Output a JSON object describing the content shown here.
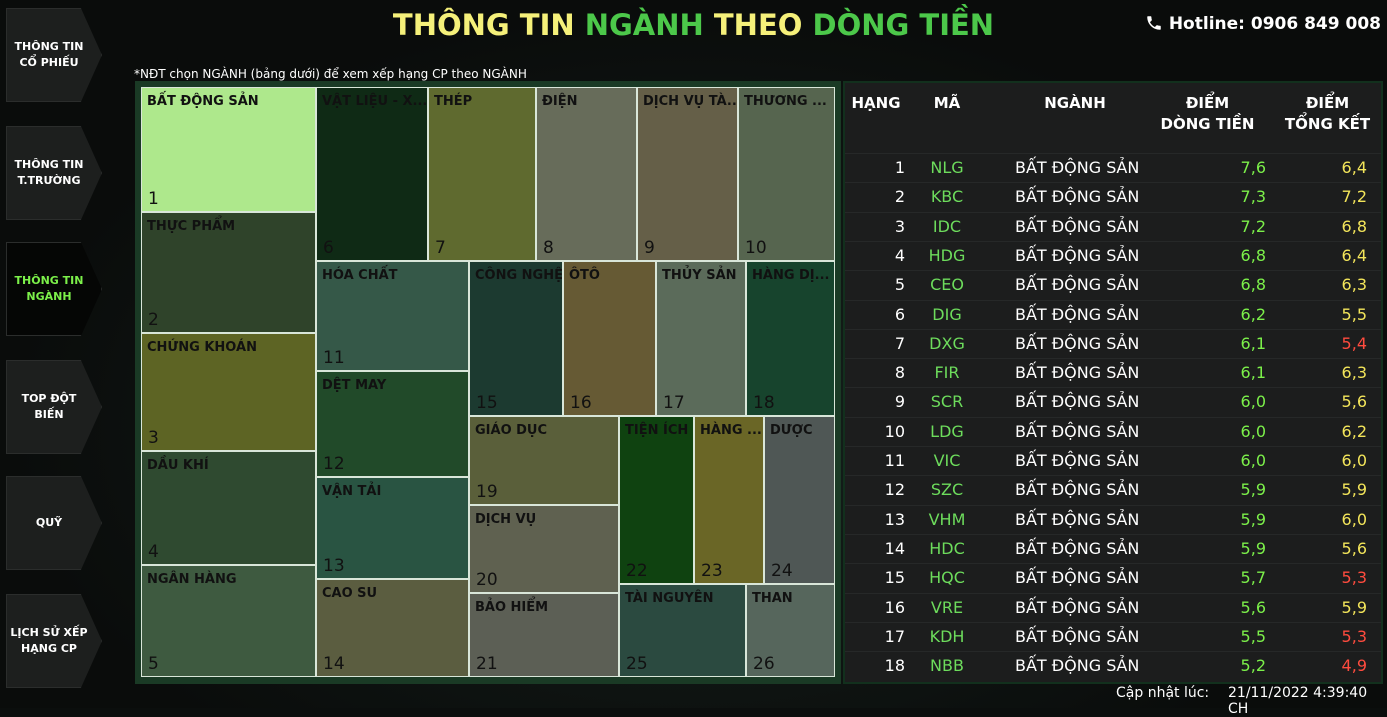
{
  "nav": [
    "THÔNG TIN\nCỔ PHIẾU",
    "THÔNG TIN\nT.TRƯỜNG",
    "THÔNG TIN\nNGÀNH",
    "TOP ĐỘT\nBIẾN",
    "QUỸ",
    "LỊCH SỬ XẾP\nHẠNG CP"
  ],
  "header": {
    "title_parts": [
      {
        "text": "THÔNG TIN ",
        "color": "#f5f07a"
      },
      {
        "text": "NGÀNH ",
        "color": "#4cc84a"
      },
      {
        "text": "THEO ",
        "color": "#f5f07a"
      },
      {
        "text": "DÒNG TIỀN",
        "color": "#4cc84a"
      }
    ],
    "hotline": "Hotline: 0906 849 008"
  },
  "note": "*NĐT chọn NGÀNH (bảng dưới) để xem xếp hạng CP theo NGÀNH",
  "treemap": [
    {
      "label": "BẤT ĐỘNG SẢN",
      "rank": 1,
      "color": "#aee88c"
    },
    {
      "label": "THỰC PHẨM",
      "rank": 2,
      "color": "#2f432a"
    },
    {
      "label": "CHỨNG KHOÁN",
      "rank": 3,
      "color": "#5d6424"
    },
    {
      "label": "DẦU KHÍ",
      "rank": 4,
      "color": "#2f4a30"
    },
    {
      "label": "NGÂN HÀNG",
      "rank": 5,
      "color": "#3e5a40"
    },
    {
      "label": "VẬT LIỆU - X...",
      "rank": 6,
      "color": "#0f2a15"
    },
    {
      "label": "THÉP",
      "rank": 7,
      "color": "#5f6a2f"
    },
    {
      "label": "ĐIỆN",
      "rank": 8,
      "color": "#676c5a"
    },
    {
      "label": "DỊCH VỤ TÀ...",
      "rank": 9,
      "color": "#655f48"
    },
    {
      "label": "THƯƠNG ...",
      "rank": 10,
      "color": "#56654f"
    },
    {
      "label": "HÓA CHẤT",
      "rank": 11,
      "color": "#355848"
    },
    {
      "label": "DỆT MAY",
      "rank": 12,
      "color": "#214a29"
    },
    {
      "label": "VẬN TẢI",
      "rank": 13,
      "color": "#295442"
    },
    {
      "label": "CAO SU",
      "rank": 14,
      "color": "#5b5d40"
    },
    {
      "label": "CÔNG NGHỆ",
      "rank": 15,
      "color": "#1c3a30"
    },
    {
      "label": "ÔTÔ",
      "rank": 16,
      "color": "#665a34"
    },
    {
      "label": "THỦY SẢN",
      "rank": 17,
      "color": "#5b6b5a"
    },
    {
      "label": "HÀNG DỊ...",
      "rank": 18,
      "color": "#17442d"
    },
    {
      "label": "GIÁO DỤC",
      "rank": 19,
      "color": "#5a5f3a"
    },
    {
      "label": "DỊCH VỤ",
      "rank": 20,
      "color": "#5f6150"
    },
    {
      "label": "BẢO HIỂM",
      "rank": 21,
      "color": "#5c5f55"
    },
    {
      "label": "TIỆN ÍCH",
      "rank": 22,
      "color": "#0f4210"
    },
    {
      "label": "HÀNG ...",
      "rank": 23,
      "color": "#6a6626"
    },
    {
      "label": "DƯỢC",
      "rank": 24,
      "color": "#4f5755"
    },
    {
      "label": "TÀI NGUYÊN",
      "rank": 25,
      "color": "#2b4a40"
    },
    {
      "label": "THAN",
      "rank": 26,
      "color": "#56665c"
    }
  ],
  "table": {
    "headers": [
      "HẠNG",
      "MÃ",
      "NGÀNH",
      "ĐIỂM\nDÒNG TIỀN",
      "ĐIỂM\nTỔNG KẾT"
    ],
    "rows": [
      [
        1,
        "NLG",
        "BẤT ĐỘNG SẢN",
        "7,6",
        "6,4"
      ],
      [
        2,
        "KBC",
        "BẤT ĐỘNG SẢN",
        "7,3",
        "7,2"
      ],
      [
        3,
        "IDC",
        "BẤT ĐỘNG SẢN",
        "7,2",
        "6,8"
      ],
      [
        4,
        "HDG",
        "BẤT ĐỘNG SẢN",
        "6,8",
        "6,4"
      ],
      [
        5,
        "CEO",
        "BẤT ĐỘNG SẢN",
        "6,8",
        "6,3"
      ],
      [
        6,
        "DIG",
        "BẤT ĐỘNG SẢN",
        "6,2",
        "5,5"
      ],
      [
        7,
        "DXG",
        "BẤT ĐỘNG SẢN",
        "6,1",
        "5,4"
      ],
      [
        8,
        "FIR",
        "BẤT ĐỘNG SẢN",
        "6,1",
        "6,3"
      ],
      [
        9,
        "SCR",
        "BẤT ĐỘNG SẢN",
        "6,0",
        "5,6"
      ],
      [
        10,
        "LDG",
        "BẤT ĐỘNG SẢN",
        "6,0",
        "6,2"
      ],
      [
        11,
        "VIC",
        "BẤT ĐỘNG SẢN",
        "6,0",
        "6,0"
      ],
      [
        12,
        "SZC",
        "BẤT ĐỘNG SẢN",
        "5,9",
        "5,9"
      ],
      [
        13,
        "VHM",
        "BẤT ĐỘNG SẢN",
        "5,9",
        "6,0"
      ],
      [
        14,
        "HDC",
        "BẤT ĐỘNG SẢN",
        "5,9",
        "5,6"
      ],
      [
        15,
        "HQC",
        "BẤT ĐỘNG SẢN",
        "5,7",
        "5,3"
      ],
      [
        16,
        "VRE",
        "BẤT ĐỘNG SẢN",
        "5,6",
        "5,9"
      ],
      [
        17,
        "KDH",
        "BẤT ĐỘNG SẢN",
        "5,5",
        "5,3"
      ],
      [
        18,
        "NBB",
        "BẤT ĐỘNG SẢN",
        "5,2",
        "4,9"
      ]
    ]
  },
  "update": {
    "label": "Cập nhật lúc:",
    "time": "21/11/2022 4:39:40 CH"
  }
}
